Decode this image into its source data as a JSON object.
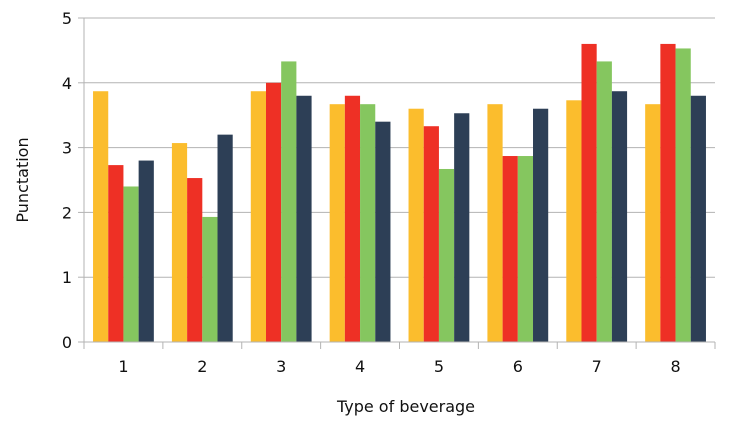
{
  "chart_data": {
    "type": "bar",
    "xlabel": "Type of beverage",
    "ylabel": "Punctation",
    "categories": [
      "1",
      "2",
      "3",
      "4",
      "5",
      "6",
      "7",
      "8"
    ],
    "ylim": [
      0,
      5
    ],
    "yticks": [
      "0",
      "1",
      "2",
      "3",
      "4",
      "5"
    ],
    "grid": "horizontal",
    "legend": "none",
    "colors": [
      "#fbbd2d",
      "#ee3025",
      "#85c65f",
      "#2d3f56"
    ],
    "series": [
      {
        "values": [
          3.87,
          3.07,
          3.87,
          3.67,
          3.6,
          3.67,
          3.73,
          3.67
        ]
      },
      {
        "values": [
          2.73,
          2.53,
          4.0,
          3.8,
          3.33,
          2.87,
          4.6,
          4.6
        ]
      },
      {
        "values": [
          2.4,
          1.93,
          4.33,
          3.67,
          2.67,
          2.87,
          4.33,
          4.53
        ]
      },
      {
        "values": [
          2.8,
          3.2,
          3.8,
          3.4,
          3.53,
          3.6,
          3.87,
          3.8
        ]
      }
    ]
  }
}
